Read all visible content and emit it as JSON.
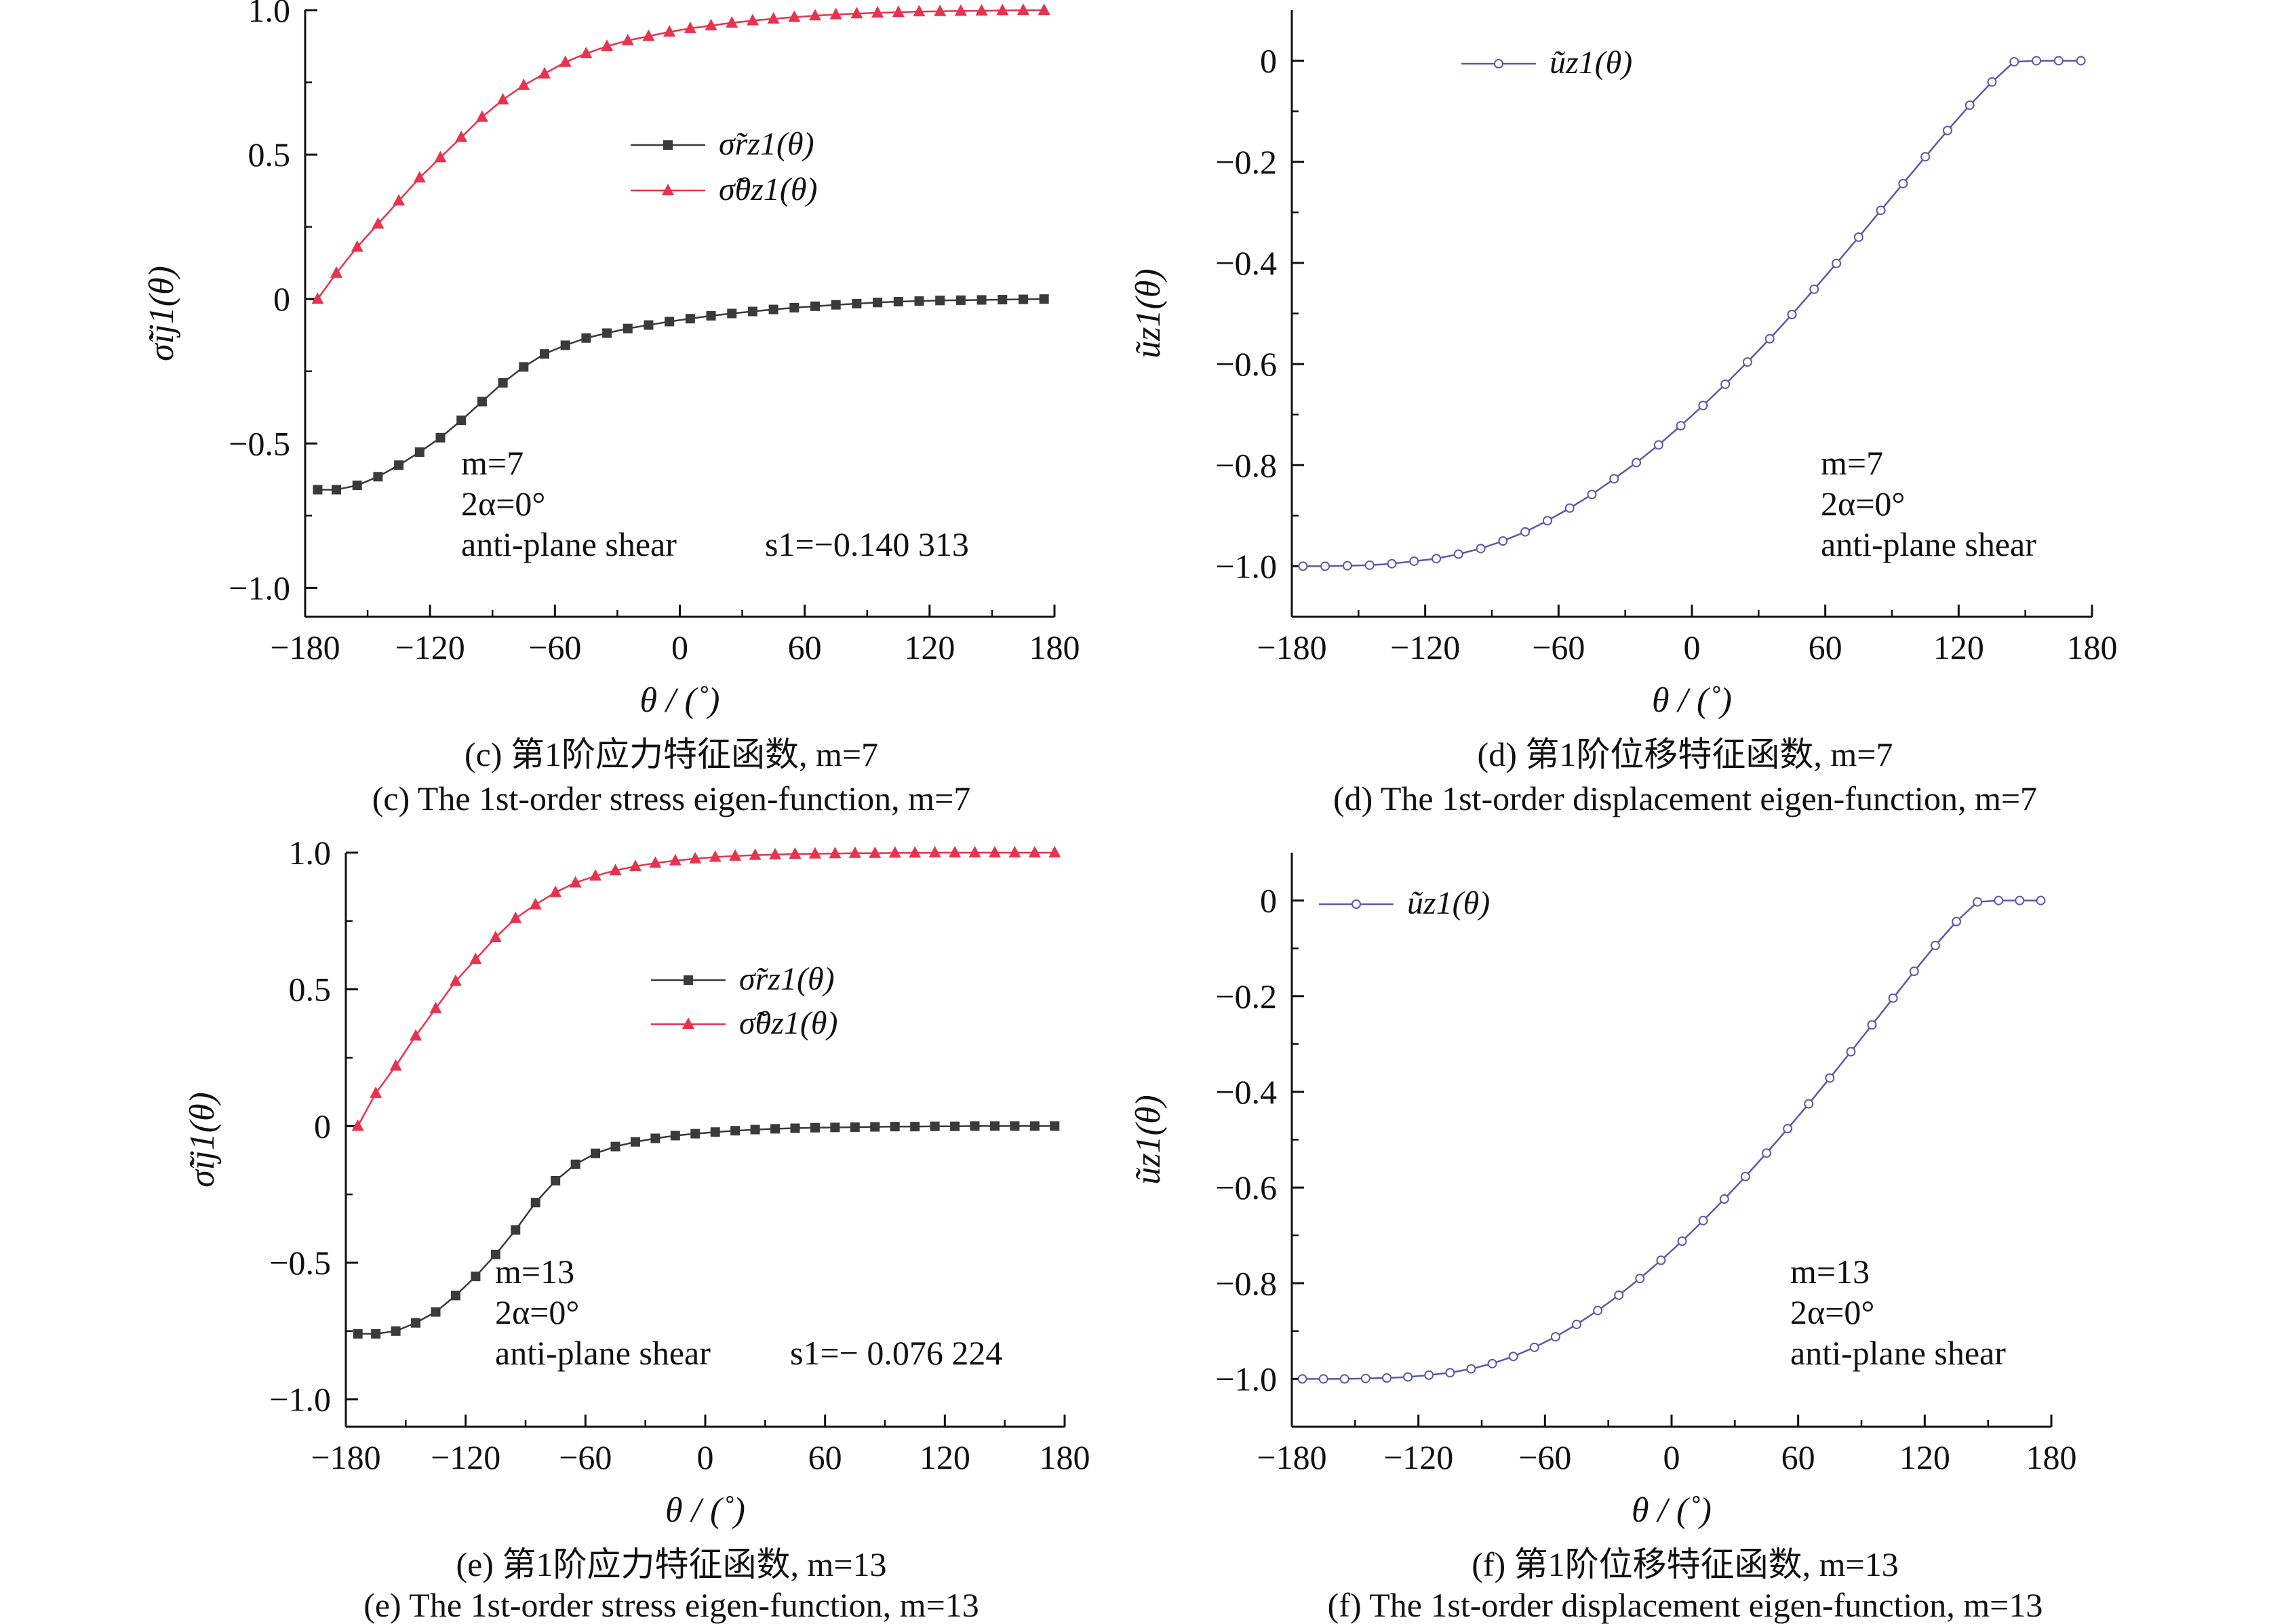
{
  "chart_data": [
    {
      "panel": "c",
      "type": "line",
      "xlabel": "θ / (˚)",
      "ylabel": "σ̃ij1(θ)",
      "xlim": [
        -180,
        180
      ],
      "ylim": [
        -1.1,
        1.0
      ],
      "xticks": [
        "−180",
        "−120",
        "−60",
        "0",
        "60",
        "120",
        "180"
      ],
      "yticks": [
        "1.0",
        "0.5",
        "0",
        "−0.5",
        "−1.0"
      ],
      "x": [
        -174,
        -165,
        -155,
        -145,
        -135,
        -125,
        -115,
        -105,
        -95,
        -85,
        -75,
        -65,
        -55,
        -45,
        -35,
        -25,
        -15,
        -5,
        5,
        15,
        25,
        35,
        45,
        55,
        65,
        75,
        85,
        95,
        105,
        115,
        125,
        135,
        145,
        155,
        165,
        175
      ],
      "series": [
        {
          "name": "σ̃rz1(θ)",
          "color": "#3a3a3a",
          "marker": "square",
          "values": [
            -0.66,
            -0.66,
            -0.645,
            -0.615,
            -0.575,
            -0.53,
            -0.48,
            -0.42,
            -0.355,
            -0.29,
            -0.235,
            -0.19,
            -0.16,
            -0.135,
            -0.118,
            -0.102,
            -0.09,
            -0.078,
            -0.068,
            -0.058,
            -0.05,
            -0.043,
            -0.036,
            -0.03,
            -0.025,
            -0.02,
            -0.016,
            -0.012,
            -0.009,
            -0.007,
            -0.005,
            -0.004,
            -0.003,
            -0.002,
            -0.001,
            0.0
          ]
        },
        {
          "name": "σ̃θz1(θ)",
          "color": "#e8334f",
          "marker": "triangle",
          "values": [
            0.0,
            0.09,
            0.18,
            0.26,
            0.34,
            0.42,
            0.49,
            0.56,
            0.63,
            0.69,
            0.74,
            0.78,
            0.82,
            0.85,
            0.875,
            0.895,
            0.91,
            0.925,
            0.937,
            0.947,
            0.956,
            0.964,
            0.97,
            0.976,
            0.981,
            0.985,
            0.988,
            0.991,
            0.993,
            0.995,
            0.996,
            0.997,
            0.998,
            0.999,
            1.0,
            1.0
          ]
        }
      ],
      "annotations": [
        "m=7",
        "2α=0°",
        "anti-plane shear",
        "s1=−0.140 313"
      ],
      "legend": "center-right"
    },
    {
      "panel": "d",
      "type": "line",
      "xlabel": "θ / (˚)",
      "ylabel": "ũz1(θ)",
      "xlim": [
        -180,
        180
      ],
      "ylim": [
        -1.1,
        0.1
      ],
      "xticks": [
        "−180",
        "−120",
        "−60",
        "0",
        "60",
        "120",
        "180"
      ],
      "yticks": [
        "0",
        "−0.2",
        "−0.4",
        "−0.6",
        "−0.8",
        "−1.0"
      ],
      "x": [
        -175,
        -165,
        -155,
        -145,
        -135,
        -125,
        -115,
        -105,
        -95,
        -85,
        -75,
        -65,
        -55,
        -45,
        -35,
        -25,
        -15,
        -5,
        5,
        15,
        25,
        35,
        45,
        55,
        65,
        75,
        85,
        95,
        105,
        115,
        125,
        135,
        145,
        155,
        165,
        175
      ],
      "series": [
        {
          "name": "ũz1(θ)",
          "color": "#5a5aa8",
          "marker": "circle",
          "values": [
            -1.0,
            -1.0,
            -0.999,
            -0.998,
            -0.995,
            -0.99,
            -0.985,
            -0.976,
            -0.965,
            -0.95,
            -0.932,
            -0.91,
            -0.885,
            -0.858,
            -0.827,
            -0.795,
            -0.76,
            -0.722,
            -0.682,
            -0.64,
            -0.596,
            -0.55,
            -0.502,
            -0.452,
            -0.401,
            -0.349,
            -0.296,
            -0.243,
            -0.19,
            -0.138,
            -0.088,
            -0.042,
            -0.002,
            0.0,
            0.0,
            0.0
          ]
        }
      ],
      "annotations": [
        "m=7",
        "2α=0°",
        "anti-plane shear"
      ],
      "legend": "top"
    },
    {
      "panel": "e",
      "type": "line",
      "xlabel": "θ / (˚)",
      "ylabel": "σ̃ij1(θ)",
      "xlim": [
        -180,
        180
      ],
      "ylim": [
        -1.1,
        1.0
      ],
      "xticks": [
        "−180",
        "−120",
        "−60",
        "0",
        "60",
        "120",
        "180"
      ],
      "yticks": [
        "1.0",
        "0.5",
        "0",
        "−0.5",
        "−1.0"
      ],
      "x": [
        -174,
        -165,
        -155,
        -145,
        -135,
        -125,
        -115,
        -105,
        -95,
        -85,
        -75,
        -65,
        -55,
        -45,
        -35,
        -25,
        -15,
        -5,
        5,
        15,
        25,
        35,
        45,
        55,
        65,
        75,
        85,
        95,
        105,
        115,
        125,
        135,
        145,
        155,
        165,
        175
      ],
      "series": [
        {
          "name": "σ̃rz1(θ)",
          "color": "#3a3a3a",
          "marker": "square",
          "values": [
            -0.76,
            -0.76,
            -0.75,
            -0.72,
            -0.68,
            -0.62,
            -0.55,
            -0.47,
            -0.38,
            -0.28,
            -0.2,
            -0.14,
            -0.1,
            -0.075,
            -0.058,
            -0.045,
            -0.035,
            -0.028,
            -0.022,
            -0.017,
            -0.013,
            -0.01,
            -0.008,
            -0.006,
            -0.005,
            -0.004,
            -0.003,
            -0.002,
            -0.002,
            -0.001,
            -0.001,
            0.0,
            0.0,
            0.0,
            0.0,
            0.0
          ]
        },
        {
          "name": "σ̃θz1(θ)",
          "color": "#e8334f",
          "marker": "triangle",
          "values": [
            0.0,
            0.12,
            0.22,
            0.33,
            0.43,
            0.53,
            0.61,
            0.69,
            0.76,
            0.81,
            0.855,
            0.89,
            0.915,
            0.935,
            0.95,
            0.962,
            0.971,
            0.978,
            0.984,
            0.988,
            0.991,
            0.993,
            0.995,
            0.996,
            0.997,
            0.998,
            0.998,
            0.999,
            0.999,
            1.0,
            1.0,
            1.0,
            1.0,
            1.0,
            1.0,
            1.0
          ]
        }
      ],
      "annotations": [
        "m=13",
        "2α=0°",
        "anti-plane shear",
        "s1=− 0.076 224"
      ],
      "legend": "center-right"
    },
    {
      "panel": "f",
      "type": "line",
      "xlabel": "θ / (˚)",
      "ylabel": "ũz1(θ)",
      "xlim": [
        -180,
        180
      ],
      "ylim": [
        -1.1,
        0.1
      ],
      "xticks": [
        "−180",
        "−120",
        "−60",
        "0",
        "60",
        "120",
        "180"
      ],
      "yticks": [
        "0",
        "−0.2",
        "−0.4",
        "−0.6",
        "−0.8",
        "−1.0"
      ],
      "x": [
        -175,
        -165,
        -155,
        -145,
        -135,
        -125,
        -115,
        -105,
        -95,
        -85,
        -75,
        -65,
        -55,
        -45,
        -35,
        -25,
        -15,
        -5,
        5,
        15,
        25,
        35,
        45,
        55,
        65,
        75,
        85,
        95,
        105,
        115,
        125,
        135,
        145,
        155,
        165,
        175
      ],
      "series": [
        {
          "name": "ũz1(θ)",
          "color": "#5a5aa8",
          "marker": "circle",
          "values": [
            -1.0,
            -1.0,
            -1.0,
            -0.999,
            -0.998,
            -0.996,
            -0.992,
            -0.987,
            -0.979,
            -0.968,
            -0.953,
            -0.934,
            -0.912,
            -0.886,
            -0.857,
            -0.825,
            -0.79,
            -0.752,
            -0.712,
            -0.669,
            -0.624,
            -0.577,
            -0.528,
            -0.477,
            -0.425,
            -0.371,
            -0.316,
            -0.26,
            -0.204,
            -0.148,
            -0.094,
            -0.044,
            -0.003,
            0.0,
            0.0,
            0.0
          ]
        }
      ],
      "annotations": [
        "m=13",
        "2α=0°",
        "anti-plane shear"
      ],
      "legend": "top-left"
    }
  ],
  "captions": {
    "c_cn": "(c) 第1阶应力特征函数, m=7",
    "c_en": "(c) The 1st-order stress eigen-function, m=7",
    "d_cn": "(d) 第1阶位移特征函数, m=7",
    "d_en": "(d) The 1st-order displacement eigen-function, m=7",
    "e_cn": "(e) 第1阶应力特征函数, m=13",
    "e_en": "(e) The 1st-order stress eigen-function, m=13",
    "f_cn": "(f) 第1阶位移特征函数, m=13",
    "f_en": "(f) The 1st-order displacement eigen-function, m=13"
  }
}
